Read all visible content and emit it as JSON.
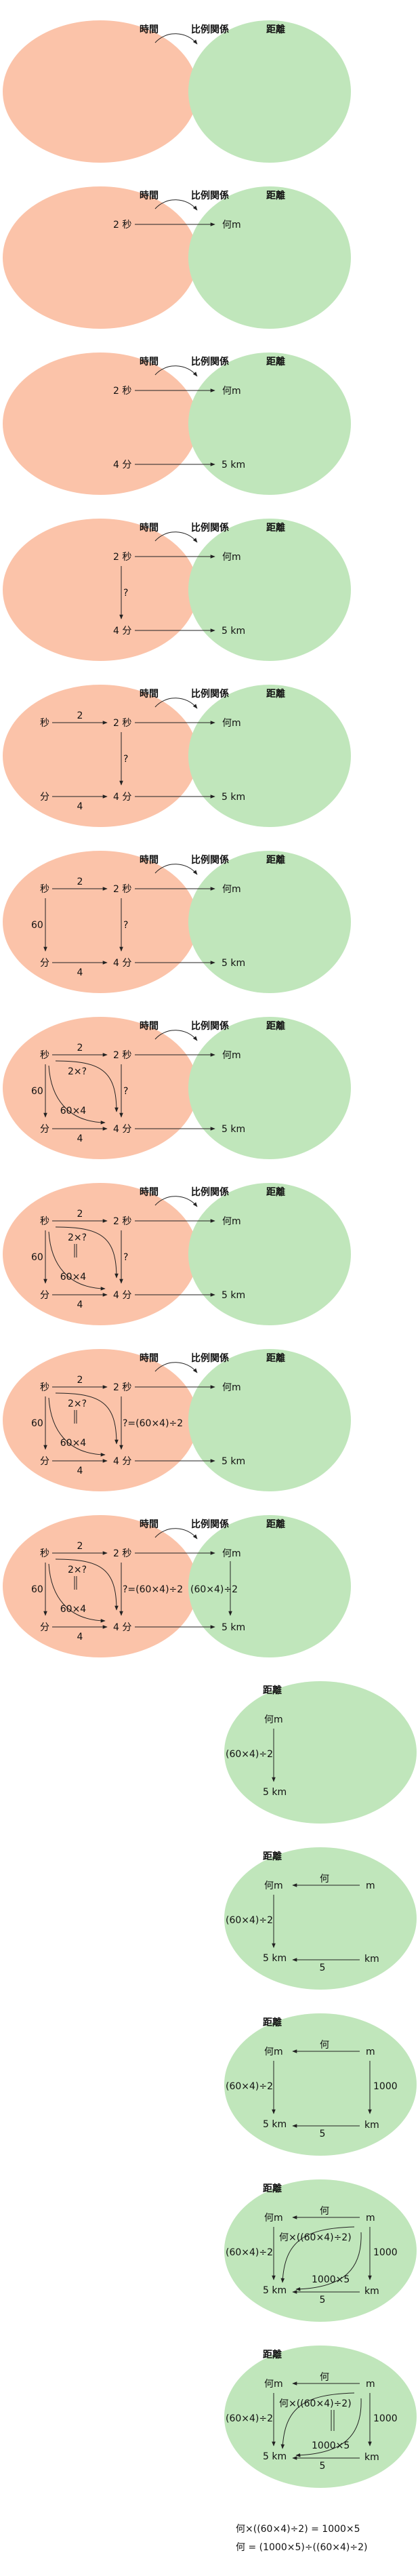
{
  "colors": {
    "time_ellipse": "#fbc3a9",
    "distance_ellipse": "#c0e6bb",
    "line": "#222222"
  },
  "labels": {
    "time": "時間",
    "relation": "比例関係",
    "distance": "距離",
    "two_sec": "2 秒",
    "four_min": "4 分",
    "nan_m": "何m",
    "five_km": "5 km",
    "sec": "秒",
    "min": "分",
    "two": "2",
    "four": "4",
    "sixty": "60",
    "question": "?",
    "q_solved": "?=(60×4)÷2",
    "two_times_q": "2×?",
    "sixty_times_four": "60×4",
    "equals_bar": "‖",
    "ratio": "(60×4)÷2",
    "m": "m",
    "km": "km",
    "nan": "何",
    "five": "5",
    "thousand": "1000",
    "nan_times_ratio": "何×((60×4)÷2)",
    "thousand_times_five": "1000×5"
  },
  "panels": [
    {
      "layout": "pair",
      "show": []
    },
    {
      "layout": "pair",
      "show": [
        "row_top"
      ]
    },
    {
      "layout": "pair",
      "show": [
        "row_top",
        "row_bottom"
      ]
    },
    {
      "layout": "pair",
      "show": [
        "row_top",
        "row_bottom",
        "q_arrow"
      ]
    },
    {
      "layout": "pair",
      "show": [
        "row_top",
        "row_bottom",
        "q_arrow",
        "sec_row",
        "min_row"
      ]
    },
    {
      "layout": "pair",
      "show": [
        "row_top",
        "row_bottom",
        "q_arrow",
        "sec_row",
        "min_row",
        "v60"
      ]
    },
    {
      "layout": "pair",
      "show": [
        "row_top",
        "row_bottom",
        "q_arrow",
        "sec_row",
        "min_row",
        "v60",
        "curves"
      ]
    },
    {
      "layout": "pair",
      "show": [
        "row_top",
        "row_bottom",
        "q_arrow",
        "sec_row",
        "min_row",
        "v60",
        "curves",
        "eq_bar"
      ]
    },
    {
      "layout": "pair",
      "show": [
        "row_top",
        "row_bottom",
        "q_arrow_solved",
        "sec_row",
        "min_row",
        "v60",
        "curves",
        "eq_bar"
      ]
    },
    {
      "layout": "pair",
      "show": [
        "row_top",
        "row_bottom",
        "q_arrow_solved",
        "sec_row",
        "min_row",
        "v60",
        "curves",
        "eq_bar",
        "right_vertical"
      ]
    },
    {
      "layout": "single",
      "show": [
        "m_vertical"
      ]
    },
    {
      "layout": "single",
      "show": [
        "m_vertical",
        "m_row",
        "km_row"
      ]
    },
    {
      "layout": "single",
      "show": [
        "m_vertical",
        "m_row",
        "km_row",
        "v1000"
      ]
    },
    {
      "layout": "single",
      "show": [
        "m_vertical",
        "m_row",
        "km_row",
        "v1000",
        "curves2"
      ]
    },
    {
      "layout": "single",
      "show": [
        "m_vertical",
        "m_row",
        "km_row",
        "v1000",
        "curves2",
        "eq_bar2"
      ]
    }
  ],
  "equations": [
    "何×((60×4)÷2) = 1000×5",
    "何 = (1000×5)÷((60×4)÷2)"
  ]
}
